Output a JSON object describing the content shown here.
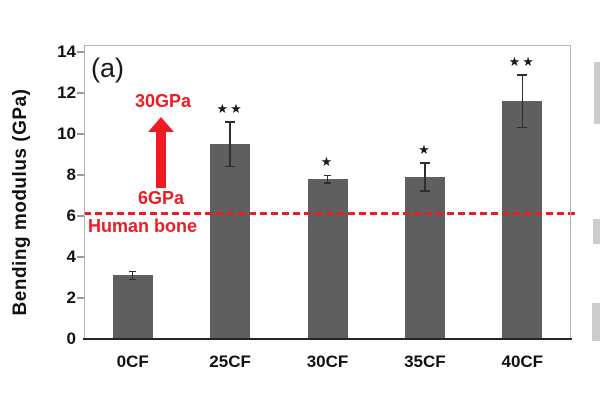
{
  "panel_label": "(a)",
  "chart_data": {
    "type": "bar",
    "title": "",
    "ylabel": "Bending modulus (GPa)",
    "xlabel": "",
    "ylim": [
      0,
      14
    ],
    "ytick_step": 2,
    "categories": [
      "0CF",
      "25CF",
      "30CF",
      "35CF",
      "40CF"
    ],
    "values": [
      3.1,
      9.5,
      7.8,
      7.9,
      11.6
    ],
    "errors": [
      0.2,
      1.1,
      0.2,
      0.7,
      1.3
    ],
    "significance_marks": [
      "",
      "★★",
      "★",
      "★",
      "★★"
    ],
    "bar_color": "#5f5f5f",
    "grid": false,
    "legend": false,
    "reference_line": {
      "value": 6.15,
      "label": "Human bone",
      "color": "#ed1c24",
      "style": "dashed"
    },
    "annotation": {
      "top_label": "30GPa",
      "bottom_label": "6GPa",
      "arrow_direction": "up",
      "color": "#ed1c24"
    }
  }
}
